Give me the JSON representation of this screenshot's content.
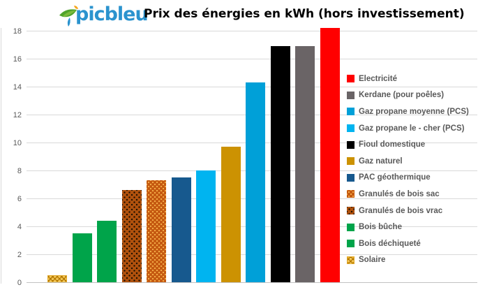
{
  "header": {
    "logo_text": "picbleu",
    "title": "Prix des énergies en kWh (hors investissement)"
  },
  "colors": {
    "electricite": "#FF0000",
    "kerdane": "#6A6466",
    "gaz_propane_moyenne": "#00A0D8",
    "gaz_propane_le_cher": "#00B4F0",
    "fioul_domestique": "#000000",
    "gaz_naturel": "#CC9202",
    "pac_geothermique": "#17598E",
    "granules_sac": "#C55A11",
    "granules_vrac": "#B0510D",
    "bois_buche": "#00A44A",
    "bois_dechiquete": "#00A44A",
    "solaire": "#F0B52F",
    "gridline": "#D9D9D9",
    "axis_text": "#595959",
    "logo_blue": "#2B93CE",
    "logo_green": "#4FA32B"
  },
  "chart_data": {
    "type": "bar",
    "title": "Prix des énergies en kWh (hors investissement)",
    "xlabel": "",
    "ylabel": "",
    "ylim": [
      0,
      18
    ],
    "yticks": [
      0,
      2,
      4,
      6,
      8,
      10,
      12,
      14,
      16,
      18
    ],
    "grid": true,
    "legend_position": "right-overlay",
    "x_axis_labels": "none",
    "bars": [
      {
        "slug": "solaire",
        "name": "Solaire",
        "value": 0.5,
        "color": "#F0B52F",
        "pattern": "weave"
      },
      {
        "slug": "bois-dechiquete",
        "name": "Bois déchiqueté",
        "value": 3.5,
        "color": "#00A44A",
        "pattern": "solid"
      },
      {
        "slug": "bois-buche",
        "name": "Bois bûche",
        "value": 4.4,
        "color": "#00A44A",
        "pattern": "solid"
      },
      {
        "slug": "granules-vrac",
        "name": "Granulés de bois vrac",
        "value": 6.6,
        "color": "#B0510D",
        "pattern": "dots-dark"
      },
      {
        "slug": "granules-sac",
        "name": "Granulés de bois sac",
        "value": 7.3,
        "color": "#C55A11",
        "pattern": "dots-light"
      },
      {
        "slug": "pac-geothermique",
        "name": "PAC géothermique",
        "value": 7.5,
        "color": "#17598E",
        "pattern": "solid"
      },
      {
        "slug": "gaz-propane-le-cher",
        "name": "Gaz propane le - cher (PCS)",
        "value": 8.0,
        "color": "#00B4F0",
        "pattern": "solid"
      },
      {
        "slug": "gaz-naturel",
        "name": "Gaz naturel",
        "value": 9.7,
        "color": "#CC9202",
        "pattern": "solid"
      },
      {
        "slug": "gaz-propane-moyenne",
        "name": "Gaz propane moyenne (PCS)",
        "value": 14.3,
        "color": "#00A0D8",
        "pattern": "solid"
      },
      {
        "slug": "fioul-domestique",
        "name": "Fioul domestique",
        "value": 16.9,
        "color": "#000000",
        "pattern": "solid"
      },
      {
        "slug": "kerdane",
        "name": "Kerdane (pour poêles)",
        "value": 16.9,
        "color": "#6A6466",
        "pattern": "solid"
      },
      {
        "slug": "electricite",
        "name": "Electricité",
        "value": 18.2,
        "color": "#FF0000",
        "pattern": "solid"
      }
    ],
    "legend": [
      {
        "slug": "electricite",
        "label": "Electricité",
        "color": "#FF0000",
        "pattern": "solid"
      },
      {
        "slug": "kerdane",
        "label": "Kerdane (pour poêles)",
        "color": "#6A6466",
        "pattern": "solid"
      },
      {
        "slug": "gaz-propane-moyenne",
        "label": "Gaz propane moyenne (PCS)",
        "color": "#00A0D8",
        "pattern": "solid"
      },
      {
        "slug": "gaz-propane-le-cher",
        "label": "Gaz propane le - cher (PCS)",
        "color": "#00B4F0",
        "pattern": "solid"
      },
      {
        "slug": "fioul-domestique",
        "label": "Fioul domestique",
        "color": "#000000",
        "pattern": "solid"
      },
      {
        "slug": "gaz-naturel",
        "label": "Gaz naturel",
        "color": "#CC9202",
        "pattern": "solid"
      },
      {
        "slug": "pac-geothermique",
        "label": "PAC géothermique",
        "color": "#17598E",
        "pattern": "solid"
      },
      {
        "slug": "granules-sac",
        "label": "Granulés de bois sac",
        "color": "#C55A11",
        "pattern": "dots-light"
      },
      {
        "slug": "granules-vrac",
        "label": "Granulés de bois vrac",
        "color": "#B0510D",
        "pattern": "dots-dark"
      },
      {
        "slug": "bois-buche",
        "label": "Bois bûche",
        "color": "#00A44A",
        "pattern": "solid"
      },
      {
        "slug": "bois-dechiquete",
        "label": "Bois déchiqueté",
        "color": "#00A44A",
        "pattern": "solid"
      },
      {
        "slug": "solaire",
        "label": "Solaire",
        "color": "#F0B52F",
        "pattern": "weave"
      }
    ]
  }
}
